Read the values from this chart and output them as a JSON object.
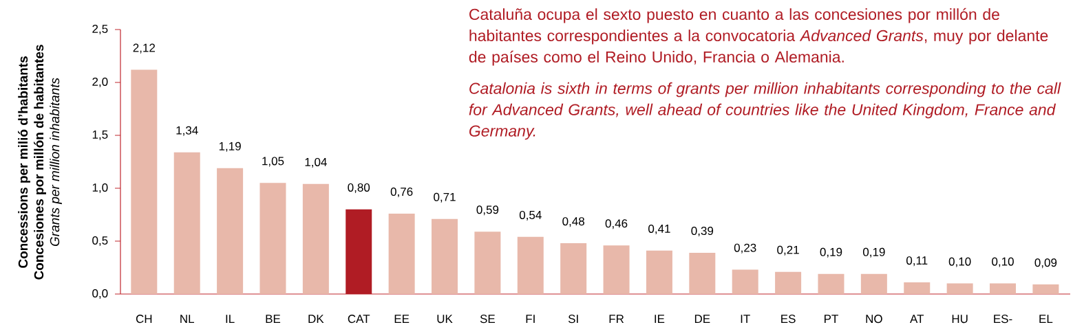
{
  "chart_data": {
    "type": "bar",
    "title": "Cataluña ocupa el sexto puesto en cuanto a las concesiones por millón de habitantes correspondientes a la convocatoria *Advanced Grants*, muy por delante de países como el Reino Unido, Francia o Alemania.",
    "subtitle": "Catalonia is sixth in terms of grants per million inhabitants corresponding to the call for Advanced Grants, well ahead of countries like the United Kingdom, France and Germany.",
    "ylabel": "**Concessions per milió d’habitants**\n**Concesiones por millón de habitantes**\n*Grants per million inhabitants*",
    "categories": [
      "CH",
      "NL",
      "IL",
      "BE",
      "DK",
      "CAT",
      "EE",
      "UK",
      "SE",
      "FI",
      "SI",
      "FR",
      "IE",
      "DE",
      "IT",
      "ES",
      "PT",
      "NO",
      "AT",
      "HU",
      "ES-",
      "EL"
    ],
    "values": [
      2.12,
      1.34,
      1.19,
      1.05,
      1.04,
      0.8,
      0.76,
      0.71,
      0.59,
      0.54,
      0.48,
      0.46,
      0.41,
      0.39,
      0.23,
      0.21,
      0.19,
      0.19,
      0.11,
      0.1,
      0.1,
      0.09
    ],
    "value_labels": [
      "2,12",
      "1,34",
      "1,19",
      "1,05",
      "1,04",
      "0,80",
      "0,76",
      "0,71",
      "0,59",
      "0,54",
      "0,48",
      "0,46",
      "0,41",
      "0,39",
      "0,23",
      "0,21",
      "0,19",
      "0,19",
      "0,11",
      "0,10",
      "0,10",
      "0,09"
    ],
    "colors": [
      "#e8b8aa",
      "#e8b8aa",
      "#e8b8aa",
      "#e8b8aa",
      "#e8b8aa",
      "#b01c24",
      "#e8b8aa",
      "#e8b8aa",
      "#e8b8aa",
      "#e8b8aa",
      "#e8b8aa",
      "#e8b8aa",
      "#e8b8aa",
      "#e8b8aa",
      "#e8b8aa",
      "#e8b8aa",
      "#e8b8aa",
      "#e8b8aa",
      "#e8b8aa",
      "#e8b8aa",
      "#e8b8aa",
      "#e8b8aa"
    ],
    "ylim": [
      0,
      2.5
    ],
    "yticks": [
      {
        "value": 0,
        "label": "0,0"
      },
      {
        "value": 0.5,
        "label": "0,5"
      },
      {
        "value": 1,
        "label": "1,0"
      },
      {
        "value": 1.5,
        "label": "1,5"
      },
      {
        "value": 2,
        "label": "2,0"
      },
      {
        "value": 2.5,
        "label": "2,5"
      }
    ],
    "grid": false
  }
}
